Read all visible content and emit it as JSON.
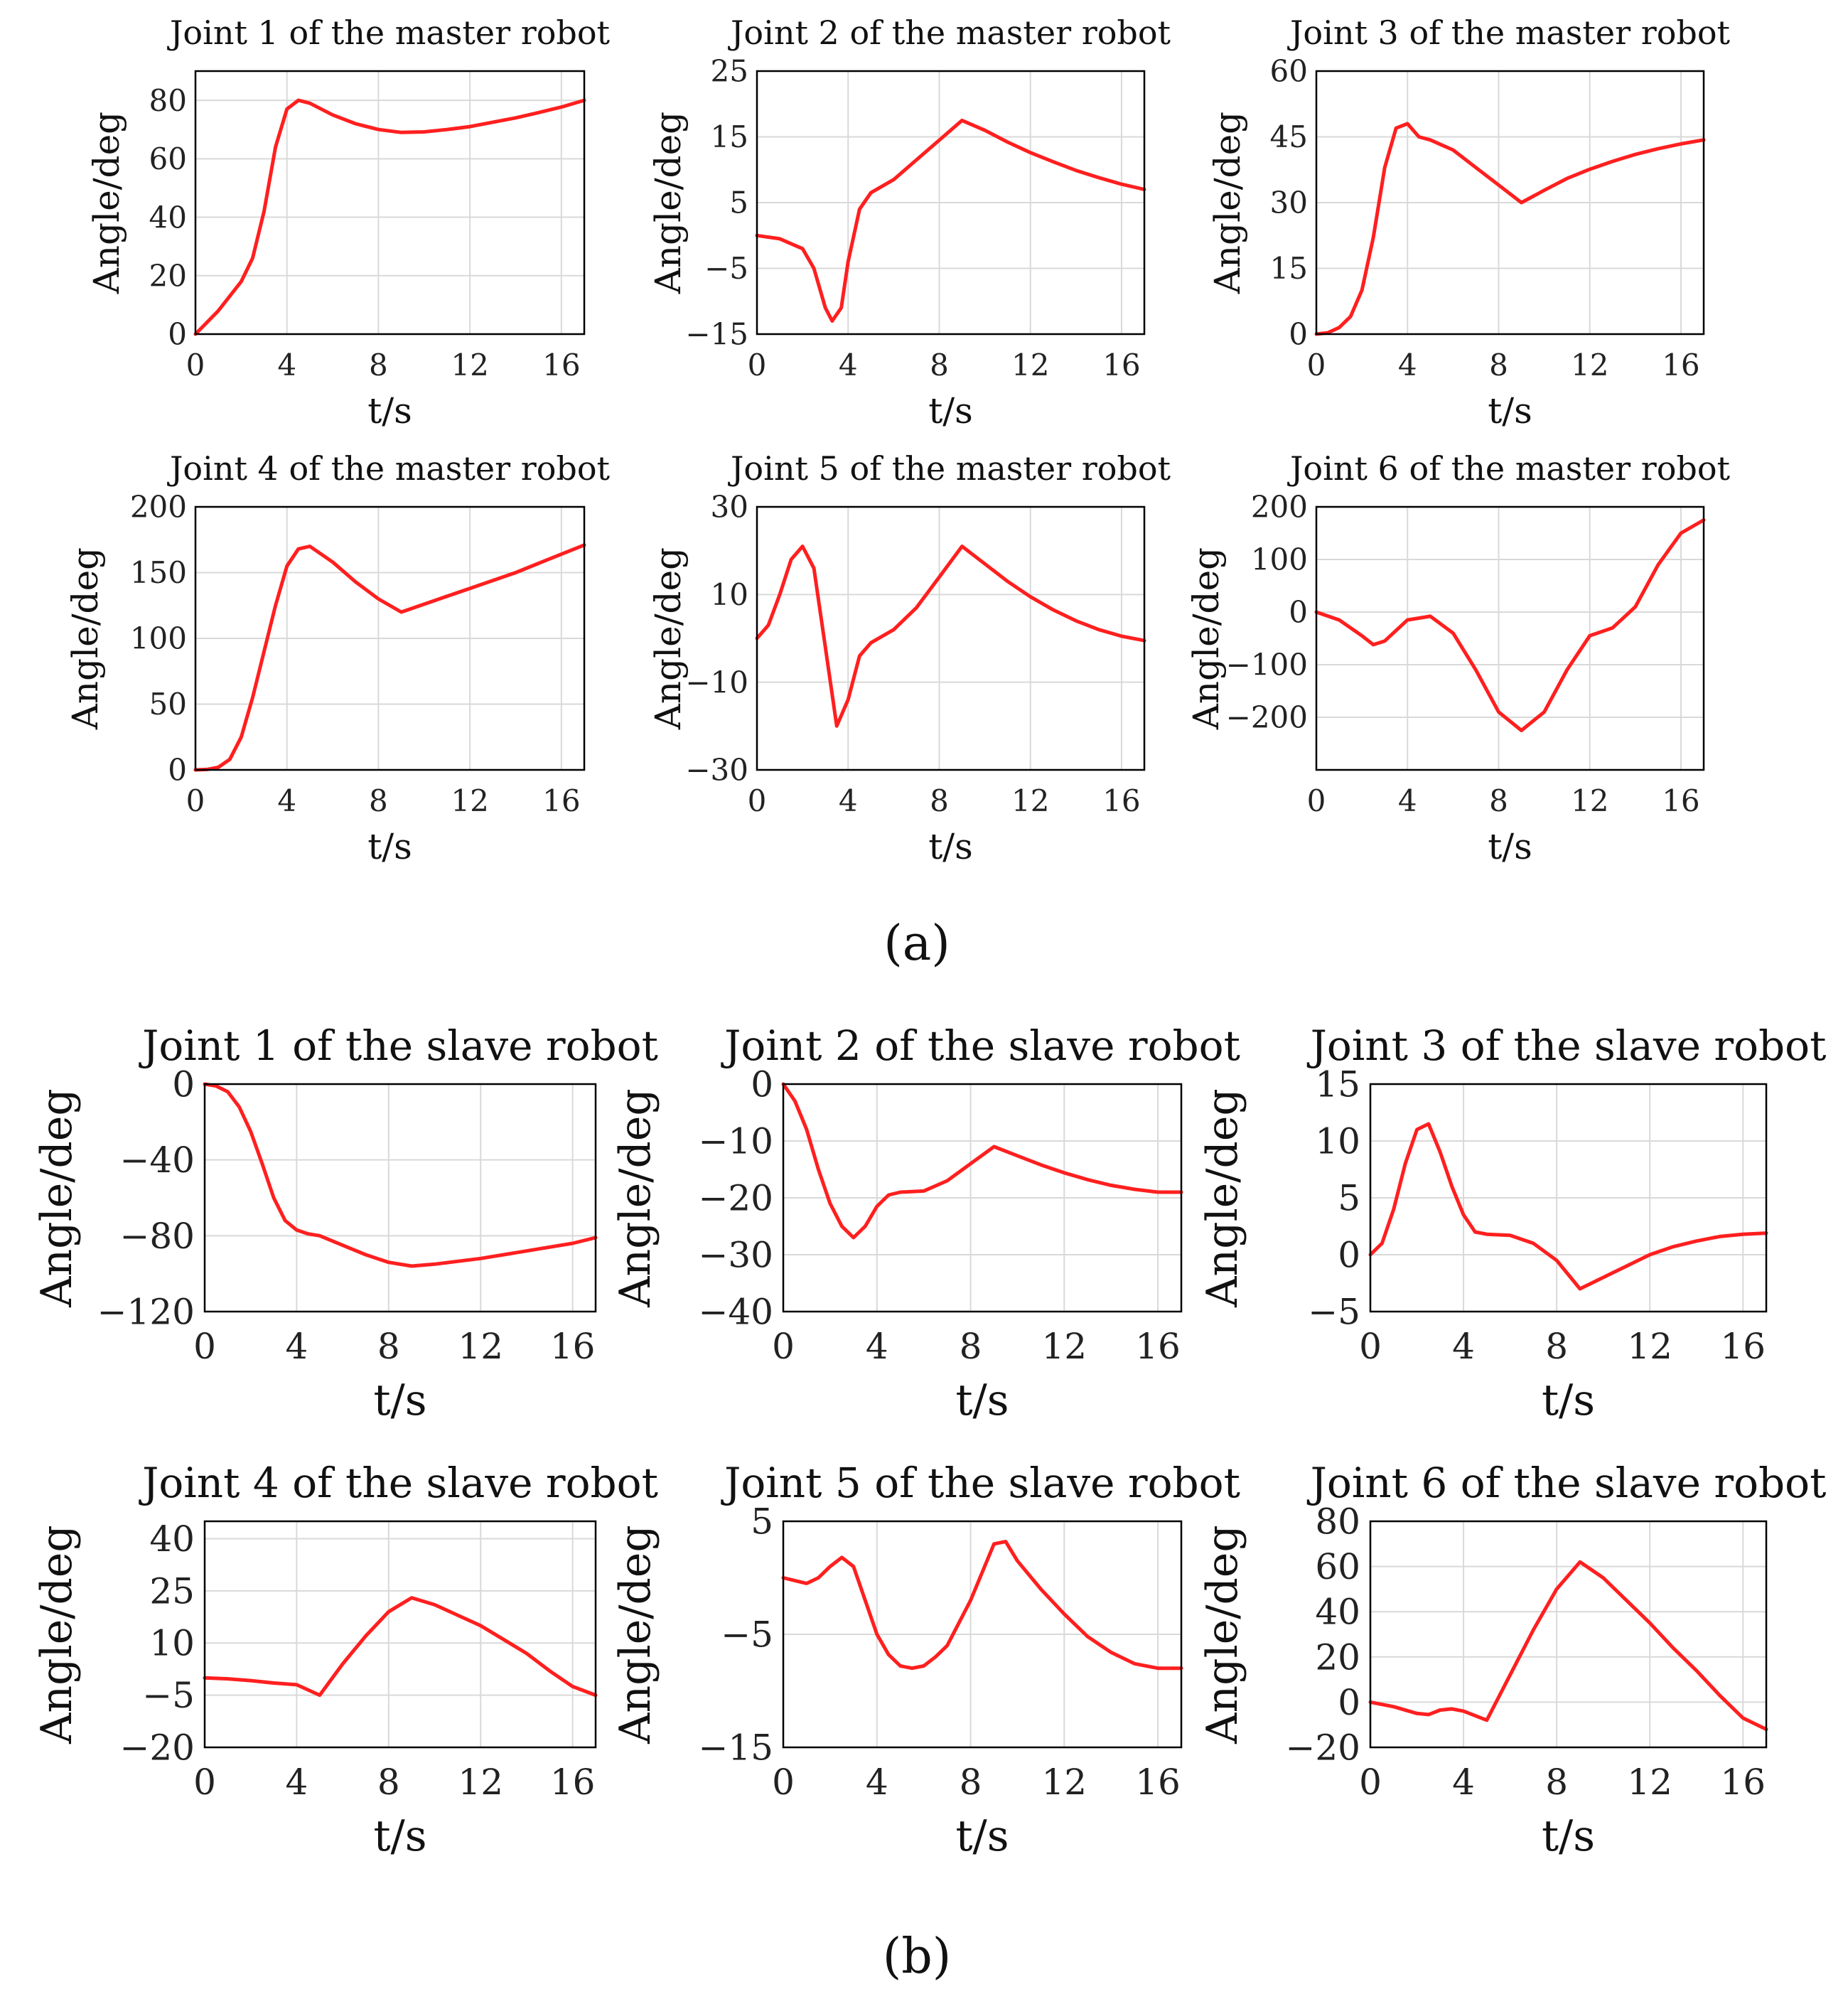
{
  "colors": {
    "series": "#ff1f1f",
    "axis": "#000000",
    "grid": "#d9d9d9"
  },
  "panel_labels": [
    "(a)",
    "(b)"
  ],
  "chart_data": [
    {
      "type": "line",
      "title": "Joint 1 of the master robot",
      "xlabel": "t/s",
      "ylabel": "Angle/deg",
      "xlim": [
        0,
        17
      ],
      "ylim": [
        0,
        90
      ],
      "xticks": [
        0,
        4,
        8,
        12,
        16
      ],
      "yticks": [
        0,
        20,
        40,
        60,
        80
      ],
      "grid": true,
      "series": [
        {
          "name": "Joint 1",
          "x": [
            0,
            1,
            2,
            2.5,
            3,
            3.5,
            4,
            4.5,
            5,
            6,
            7,
            8,
            9,
            10,
            11,
            12,
            13,
            14,
            15,
            16,
            17
          ],
          "y": [
            0,
            8,
            18,
            26,
            42,
            64,
            77,
            80,
            79,
            75,
            72,
            70,
            69,
            69.2,
            70,
            71,
            72.5,
            74,
            75.8,
            77.7,
            80
          ]
        }
      ]
    },
    {
      "type": "line",
      "title": "Joint 2 of the master robot",
      "xlabel": "t/s",
      "ylabel": "Angle/deg",
      "xlim": [
        0,
        17
      ],
      "ylim": [
        -15,
        25
      ],
      "xticks": [
        0,
        4,
        8,
        12,
        16
      ],
      "yticks": [
        -15,
        -5,
        5,
        15,
        25
      ],
      "grid": true,
      "series": [
        {
          "name": "Joint 2",
          "x": [
            0,
            1,
            2,
            2.5,
            3,
            3.3,
            3.7,
            4,
            4.5,
            5,
            6,
            7,
            8,
            9,
            10,
            11,
            12,
            13,
            14,
            15,
            16,
            17
          ],
          "y": [
            0,
            -0.5,
            -2,
            -5,
            -11,
            -13,
            -11,
            -4,
            4,
            6.5,
            8.5,
            11.5,
            14.5,
            17.5,
            16,
            14.2,
            12.6,
            11.2,
            9.9,
            8.8,
            7.8,
            7
          ]
        }
      ]
    },
    {
      "type": "line",
      "title": "Joint 3 of the master robot",
      "xlabel": "t/s",
      "ylabel": "Angle/deg",
      "xlim": [
        0,
        17
      ],
      "ylim": [
        0,
        60
      ],
      "xticks": [
        0,
        4,
        8,
        12,
        16
      ],
      "yticks": [
        0,
        15,
        30,
        45,
        60
      ],
      "grid": true,
      "series": [
        {
          "name": "Joint 3",
          "x": [
            0,
            0.5,
            1,
            1.5,
            2,
            2.5,
            3,
            3.5,
            4,
            4.5,
            5,
            6,
            7,
            8,
            9,
            10,
            11,
            12,
            13,
            14,
            15,
            16,
            17
          ],
          "y": [
            0,
            0.3,
            1.5,
            4,
            10,
            22,
            38,
            47,
            48,
            45,
            44.3,
            42,
            38,
            34,
            30,
            32.8,
            35.5,
            37.6,
            39.4,
            41,
            42.3,
            43.4,
            44.3
          ]
        }
      ]
    },
    {
      "type": "line",
      "title": "Joint 4 of the master robot",
      "xlabel": "t/s",
      "ylabel": "Angle/deg",
      "xlim": [
        0,
        17
      ],
      "ylim": [
        0,
        200
      ],
      "xticks": [
        0,
        4,
        8,
        12,
        16
      ],
      "yticks": [
        0,
        50,
        100,
        150,
        200
      ],
      "grid": true,
      "series": [
        {
          "name": "Joint 4",
          "x": [
            0,
            0.5,
            1,
            1.5,
            2,
            2.5,
            3,
            3.5,
            4,
            4.5,
            5,
            6,
            7,
            8,
            9,
            10,
            11,
            12,
            13,
            14,
            15,
            16,
            17
          ],
          "y": [
            0,
            0.3,
            2,
            8,
            25,
            55,
            90,
            125,
            155,
            168,
            170,
            158,
            143,
            130,
            120,
            126,
            132,
            138,
            144,
            150,
            157,
            164,
            171
          ]
        }
      ]
    },
    {
      "type": "line",
      "title": "Joint 5 of the master robot",
      "xlabel": "t/s",
      "ylabel": "Angle/deg",
      "xlim": [
        0,
        17
      ],
      "ylim": [
        -30,
        30
      ],
      "xticks": [
        0,
        4,
        8,
        12,
        16
      ],
      "yticks": [
        -30,
        -10,
        10,
        30
      ],
      "grid": true,
      "series": [
        {
          "name": "Joint 5",
          "x": [
            0,
            0.5,
            1,
            1.5,
            2,
            2.5,
            3,
            3.5,
            4,
            4.5,
            5,
            6,
            7,
            8,
            9,
            10,
            11,
            12,
            13,
            14,
            15,
            16,
            17
          ],
          "y": [
            0,
            3,
            10,
            18,
            21,
            16,
            -2,
            -20,
            -14,
            -4,
            -1,
            2,
            7,
            14,
            21,
            17,
            13,
            9.5,
            6.5,
            4,
            2,
            0.5,
            -0.5
          ]
        }
      ]
    },
    {
      "type": "line",
      "title": "Joint 6 of the master robot",
      "xlabel": "t/s",
      "ylabel": "Angle/deg",
      "xlim": [
        0,
        17
      ],
      "ylim": [
        -300,
        200
      ],
      "xticks": [
        0,
        4,
        8,
        12,
        16
      ],
      "yticks": [
        -200,
        -100,
        0,
        100,
        200
      ],
      "grid": true,
      "series": [
        {
          "name": "Joint 6",
          "x": [
            0,
            1,
            2,
            2.5,
            3,
            4,
            5,
            6,
            7,
            8,
            9,
            10,
            11,
            12,
            13,
            14,
            15,
            16,
            17
          ],
          "y": [
            0,
            -15,
            -45,
            -62,
            -55,
            -15,
            -8,
            -40,
            -110,
            -190,
            -225,
            -190,
            -110,
            -45,
            -30,
            10,
            90,
            150,
            175
          ]
        }
      ]
    },
    {
      "type": "line",
      "title": "Joint 1 of the slave robot",
      "xlabel": "t/s",
      "ylabel": "Angle/deg",
      "xlim": [
        0,
        17
      ],
      "ylim": [
        -120,
        0
      ],
      "xticks": [
        0,
        4,
        8,
        12,
        16
      ],
      "yticks": [
        -120,
        -80,
        -40,
        0
      ],
      "grid": true,
      "series": [
        {
          "name": "Joint 1",
          "x": [
            0,
            0.5,
            1,
            1.5,
            2,
            2.5,
            3,
            3.5,
            4,
            4.5,
            5,
            6,
            7,
            8,
            9,
            10,
            11,
            12,
            13,
            14,
            15,
            16,
            17
          ],
          "y": [
            0,
            -1,
            -4,
            -12,
            -25,
            -42,
            -60,
            -72,
            -77,
            -79,
            -80,
            -85,
            -90,
            -94,
            -96,
            -95,
            -93.5,
            -92,
            -90,
            -88,
            -86,
            -84,
            -81
          ]
        }
      ]
    },
    {
      "type": "line",
      "title": "Joint 2 of the slave robot",
      "xlabel": "t/s",
      "ylabel": "Angle/deg",
      "xlim": [
        0,
        17
      ],
      "ylim": [
        -40,
        0
      ],
      "xticks": [
        0,
        4,
        8,
        12,
        16
      ],
      "yticks": [
        -40,
        -30,
        -20,
        -10,
        0
      ],
      "grid": true,
      "series": [
        {
          "name": "Joint 2",
          "x": [
            0,
            0.5,
            1,
            1.5,
            2,
            2.5,
            3,
            3.5,
            4,
            4.5,
            5,
            6,
            7,
            8,
            9,
            10,
            11,
            12,
            13,
            14,
            15,
            16,
            17
          ],
          "y": [
            0,
            -3,
            -8,
            -15,
            -21,
            -25,
            -27,
            -25,
            -21.5,
            -19.5,
            -19,
            -18.8,
            -17,
            -14,
            -11,
            -12.6,
            -14.2,
            -15.6,
            -16.8,
            -17.8,
            -18.5,
            -19,
            -19
          ]
        }
      ]
    },
    {
      "type": "line",
      "title": "Joint 3 of the slave robot",
      "xlabel": "t/s",
      "ylabel": "Angle/deg",
      "xlim": [
        0,
        17
      ],
      "ylim": [
        -5,
        15
      ],
      "xticks": [
        0,
        4,
        8,
        12,
        16
      ],
      "yticks": [
        -5,
        0,
        5,
        10,
        15
      ],
      "grid": true,
      "series": [
        {
          "name": "Joint 3",
          "x": [
            0,
            0.5,
            1,
            1.5,
            2,
            2.5,
            3,
            3.5,
            4,
            4.5,
            5,
            6,
            7,
            8,
            9,
            10,
            11,
            12,
            13,
            14,
            15,
            16,
            17
          ],
          "y": [
            0,
            1,
            4,
            8,
            11,
            11.5,
            9,
            6,
            3.5,
            2,
            1.8,
            1.7,
            1,
            -0.5,
            -3,
            -2,
            -1,
            0,
            0.7,
            1.2,
            1.6,
            1.8,
            1.9
          ]
        }
      ]
    },
    {
      "type": "line",
      "title": "Joint 4 of the slave robot",
      "xlabel": "t/s",
      "ylabel": "Angle/deg",
      "xlim": [
        0,
        17
      ],
      "ylim": [
        -20,
        45
      ],
      "xticks": [
        0,
        4,
        8,
        12,
        16
      ],
      "yticks": [
        -20,
        -5,
        10,
        25,
        40
      ],
      "grid": true,
      "series": [
        {
          "name": "Joint 4",
          "x": [
            0,
            1,
            2,
            3,
            4,
            5,
            6,
            7,
            8,
            9,
            10,
            11,
            12,
            13,
            14,
            15,
            16,
            17
          ],
          "y": [
            0,
            -0.3,
            -0.8,
            -1.5,
            -2,
            -5,
            4,
            12,
            19,
            23,
            21,
            18,
            15,
            11,
            7,
            2,
            -2.5,
            -5
          ]
        }
      ]
    },
    {
      "type": "line",
      "title": "Joint 5 of the slave robot",
      "xlabel": "t/s",
      "ylabel": "Angle/deg",
      "xlim": [
        0,
        17
      ],
      "ylim": [
        -15,
        5
      ],
      "xticks": [
        0,
        4,
        8,
        12,
        16
      ],
      "yticks": [
        -15,
        -5,
        5
      ],
      "grid": true,
      "series": [
        {
          "name": "Joint 5",
          "x": [
            0,
            1,
            1.5,
            2,
            2.5,
            3,
            3.5,
            4,
            4.5,
            5,
            5.5,
            6,
            6.5,
            7,
            8,
            9,
            9.5,
            10,
            11,
            12,
            13,
            14,
            15,
            16,
            17
          ],
          "y": [
            0,
            -0.5,
            0,
            1,
            1.8,
            1,
            -2,
            -5,
            -6.8,
            -7.8,
            -8,
            -7.8,
            -7,
            -6,
            -2,
            3,
            3.2,
            1.5,
            -1,
            -3.2,
            -5.2,
            -6.6,
            -7.6,
            -8,
            -8
          ]
        }
      ]
    },
    {
      "type": "line",
      "title": "Joint 6 of the slave robot",
      "xlabel": "t/s",
      "ylabel": "Angle/deg",
      "xlim": [
        0,
        17
      ],
      "ylim": [
        -20,
        80
      ],
      "xticks": [
        0,
        4,
        8,
        12,
        16
      ],
      "yticks": [
        -20,
        0,
        20,
        40,
        60,
        80
      ],
      "grid": true,
      "series": [
        {
          "name": "Joint 6",
          "x": [
            0,
            1,
            2,
            2.5,
            3,
            3.5,
            4,
            5,
            6,
            7,
            8,
            9,
            10,
            11,
            12,
            13,
            14,
            15,
            16,
            17
          ],
          "y": [
            0,
            -2,
            -5,
            -5.5,
            -3.5,
            -3,
            -4,
            -8,
            12,
            32,
            50,
            62,
            55,
            45,
            35,
            24,
            14,
            3,
            -7,
            -12
          ]
        }
      ]
    }
  ]
}
